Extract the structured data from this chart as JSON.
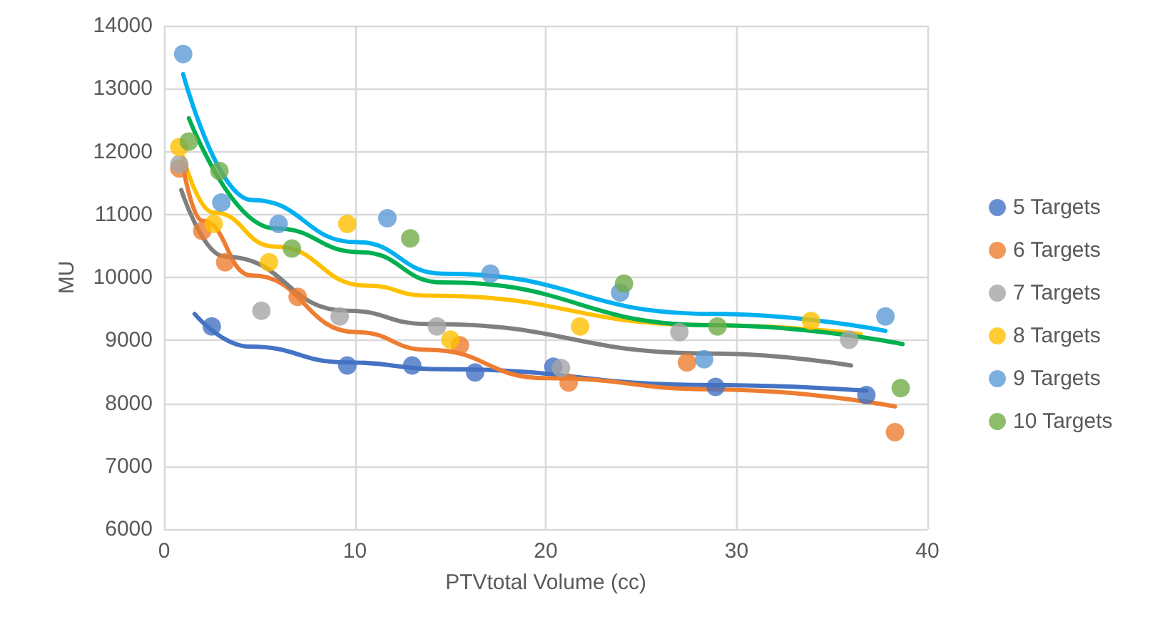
{
  "chart_data": {
    "type": "scatter",
    "xlabel": "PTVtotal Volume (cc)",
    "ylabel": "MU",
    "xlim": [
      0,
      40
    ],
    "xticks": [
      0,
      10,
      20,
      30,
      40
    ],
    "ylim": [
      6000,
      14000
    ],
    "yticks": [
      6000,
      7000,
      8000,
      9000,
      10000,
      11000,
      12000,
      13000,
      14000
    ],
    "grid": true,
    "legend": "right",
    "marker": "circle",
    "series": [
      {
        "name": "5 Targets",
        "color": "#4472c4",
        "x": [
          2.5,
          9.6,
          13.0,
          16.3,
          20.4,
          28.9,
          36.8
        ],
        "values": [
          9220,
          8600,
          8600,
          8490,
          8580,
          8260,
          8130
        ]
      },
      {
        "name": "6 Targets",
        "color": "#ed7d31",
        "x": [
          0.8,
          2.0,
          3.2,
          7.0,
          15.5,
          21.2,
          27.4,
          38.3
        ],
        "values": [
          11730,
          10740,
          10240,
          9690,
          8920,
          8330,
          8650,
          7540
        ]
      },
      {
        "name": "7 Targets",
        "color": "#a5a5a5",
        "x": [
          0.8,
          5.1,
          9.2,
          14.3,
          20.8,
          27.0,
          35.9
        ],
        "values": [
          11800,
          9470,
          9380,
          9220,
          8560,
          9130,
          9010
        ]
      },
      {
        "name": "8 Targets",
        "color": "#ffc000",
        "x": [
          0.8,
          2.6,
          5.5,
          9.6,
          15.0,
          21.8,
          33.9
        ],
        "values": [
          12070,
          10850,
          10240,
          10850,
          9010,
          9220,
          9310
        ]
      },
      {
        "name": "9 Targets",
        "color": "#5b9bd5",
        "x": [
          1.0,
          3.0,
          6.0,
          11.7,
          17.1,
          23.9,
          28.3,
          37.8
        ],
        "values": [
          13550,
          11190,
          10850,
          10940,
          10060,
          9760,
          8700,
          9380
        ]
      },
      {
        "name": "10 Targets",
        "color": "#70ad47",
        "x": [
          1.3,
          2.9,
          6.7,
          12.9,
          24.1,
          29.0,
          38.6
        ],
        "values": [
          12160,
          11690,
          10460,
          10620,
          9900,
          9220,
          8240
        ]
      },
      {
        "type": "line",
        "marker": "none",
        "color": "#4472c4",
        "x": [
          1.6,
          4.5,
          9.6,
          14.6,
          28.8,
          36.8
        ],
        "values": [
          9420,
          8900,
          8650,
          8540,
          8290,
          8200
        ]
      },
      {
        "type": "line",
        "marker": "none",
        "color": "#ed7d31",
        "x": [
          1.0,
          2.0,
          4.6,
          10.1,
          13.8,
          20.0,
          28.8,
          38.3
        ],
        "values": [
          11750,
          10900,
          10030,
          9130,
          8850,
          8400,
          8220,
          7950
        ]
      },
      {
        "type": "line",
        "marker": "none",
        "color": "#7f7f7f",
        "x": [
          0.9,
          3.2,
          9.6,
          13.8,
          28.8,
          36.0
        ],
        "values": [
          11390,
          10330,
          9470,
          9260,
          8790,
          8600
        ]
      },
      {
        "type": "line",
        "marker": "none",
        "color": "#ffc000",
        "x": [
          1.0,
          2.6,
          5.8,
          10.6,
          13.8,
          28.8,
          36.5
        ],
        "values": [
          11910,
          11030,
          10490,
          9870,
          9710,
          9240,
          9100
        ]
      },
      {
        "type": "line",
        "marker": "none",
        "color": "#00b0f0",
        "x": [
          1.0,
          4.6,
          10.1,
          14.6,
          28.8,
          37.8
        ],
        "values": [
          13230,
          11230,
          10560,
          10060,
          9420,
          9150
        ]
      },
      {
        "type": "line",
        "marker": "none",
        "color": "#00b050",
        "x": [
          1.3,
          5.8,
          10.3,
          14.6,
          28.8,
          38.7
        ],
        "values": [
          12530,
          10780,
          10400,
          9920,
          9240,
          8940
        ]
      }
    ]
  }
}
